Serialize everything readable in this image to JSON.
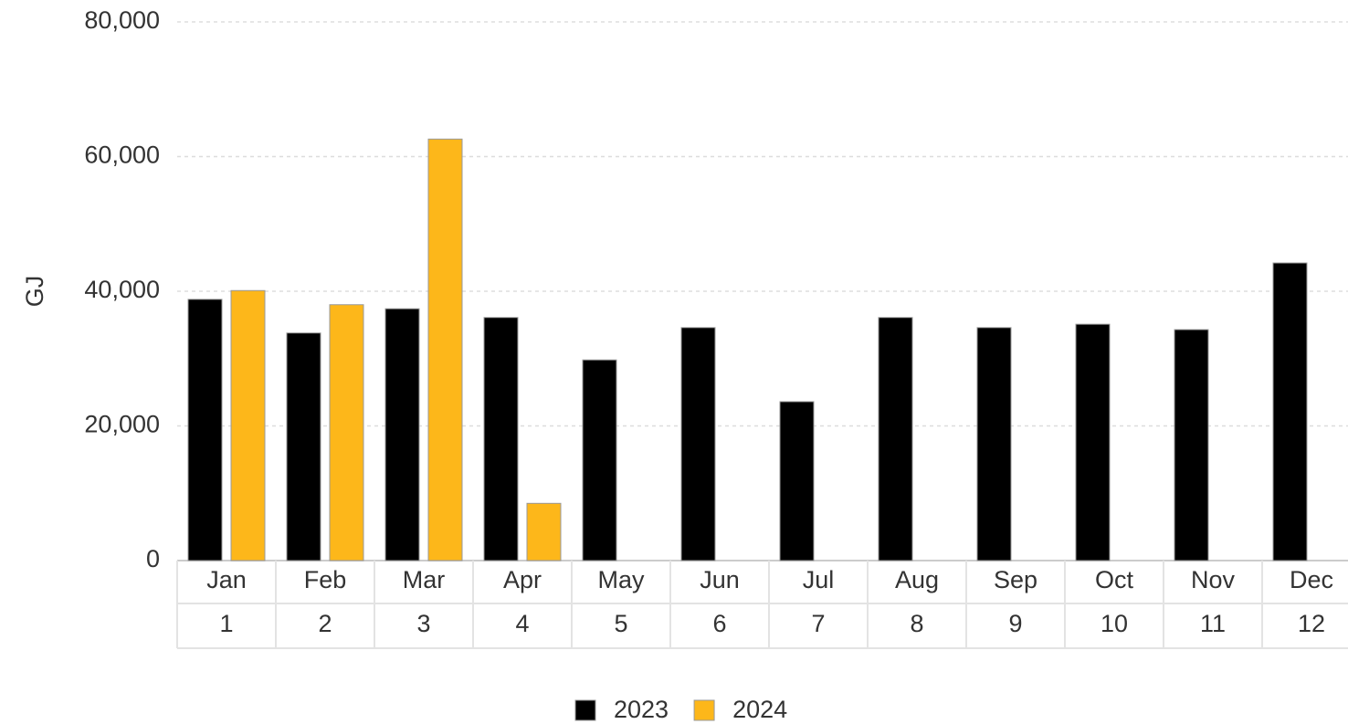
{
  "chart_data": {
    "type": "bar",
    "y_label": "GJ",
    "categories": [
      "Jan",
      "Feb",
      "Mar",
      "Apr",
      "May",
      "Jun",
      "Jul",
      "Aug",
      "Sep",
      "Oct",
      "Nov",
      "Dec"
    ],
    "sub_categories": [
      "1",
      "2",
      "3",
      "4",
      "5",
      "6",
      "7",
      "8",
      "9",
      "10",
      "11",
      "12"
    ],
    "series": [
      {
        "name": "2023",
        "color": "#000000",
        "values": [
          38800,
          33800,
          37400,
          36100,
          29800,
          34600,
          23600,
          36100,
          34600,
          35100,
          34300,
          44200
        ]
      },
      {
        "name": "2024",
        "color": "#fdb71a",
        "values": [
          40100,
          38000,
          62600,
          8500,
          null,
          null,
          null,
          null,
          null,
          null,
          null,
          null
        ]
      }
    ],
    "ylim": [
      0,
      80000
    ],
    "yticks": [
      0,
      {
        "value": 20000,
        "label": "20,000"
      },
      {
        "value": 40000,
        "label": "40,000"
      },
      {
        "value": 60000,
        "label": "60,000"
      },
      {
        "value": 80000,
        "label": "80,000"
      }
    ],
    "grid": true
  }
}
